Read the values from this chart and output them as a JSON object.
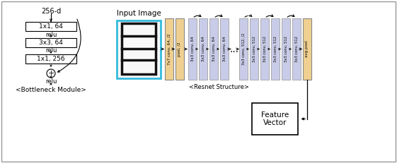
{
  "bg_color": "#ffffff",
  "bottleneck": {
    "label_256d": "256-d",
    "boxes": [
      "1x1, 64",
      "3x3, 64",
      "1x1, 256"
    ],
    "caption": "<Bottleneck Module>"
  },
  "input_image_label": "Input Image",
  "input_border_color": "#33bbdd",
  "resnet_caption": "<Resnet Structure>",
  "feature_vector_label": "Feature\nVector",
  "conv_color_warm": "#f0d090",
  "conv_color_cool": "#c8cce8",
  "dots": "...",
  "conv_labels_left": [
    "7x7 conv, 64, /2",
    "pool, /2",
    "3x3 conv, 64",
    "3x3 conv, 64",
    "3x3 conv, 64",
    "3x3 conv, 64"
  ],
  "conv_labels_right": [
    "3x3 conv, 512, /2",
    "3x3 conv, 512",
    "3x3 conv, 512",
    "3x3 conv, 512",
    "3x3 conv, 512",
    "3x3 conv, 512",
    "avg pool"
  ]
}
